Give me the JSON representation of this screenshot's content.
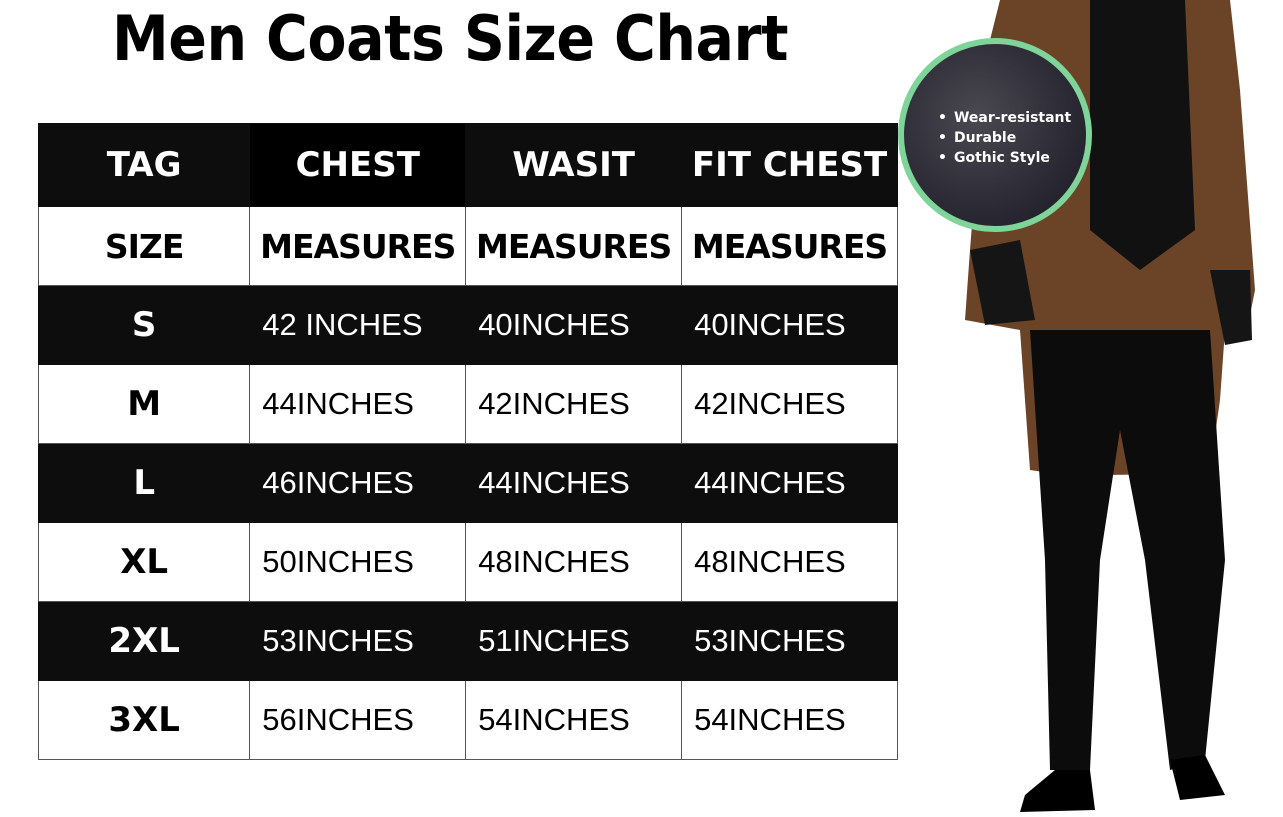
{
  "title": "Men Coats Size Chart",
  "table": {
    "headers": [
      "TAG",
      "CHEST",
      "WASIT",
      "FIT CHEST"
    ],
    "subheaders": [
      "SIZE",
      "MEASURES",
      "MEASURES",
      "MEASURES"
    ],
    "rows": [
      [
        "S",
        "42 INCHES",
        "40INCHES",
        "40INCHES"
      ],
      [
        "M",
        "44INCHES",
        "42INCHES",
        "42INCHES"
      ],
      [
        "L",
        "46INCHES",
        "44INCHES",
        "44INCHES"
      ],
      [
        "XL",
        "50INCHES",
        "48INCHES",
        "48INCHES"
      ],
      [
        "2XL",
        "53INCHES",
        "51INCHES",
        "53INCHES"
      ],
      [
        "3XL",
        "56INCHES",
        "54INCHES",
        "54INCHES"
      ]
    ]
  },
  "badge": {
    "features": [
      "Wear-resistant",
      "Durable",
      "Gothic Style"
    ],
    "border_color": "#7fd49a"
  }
}
